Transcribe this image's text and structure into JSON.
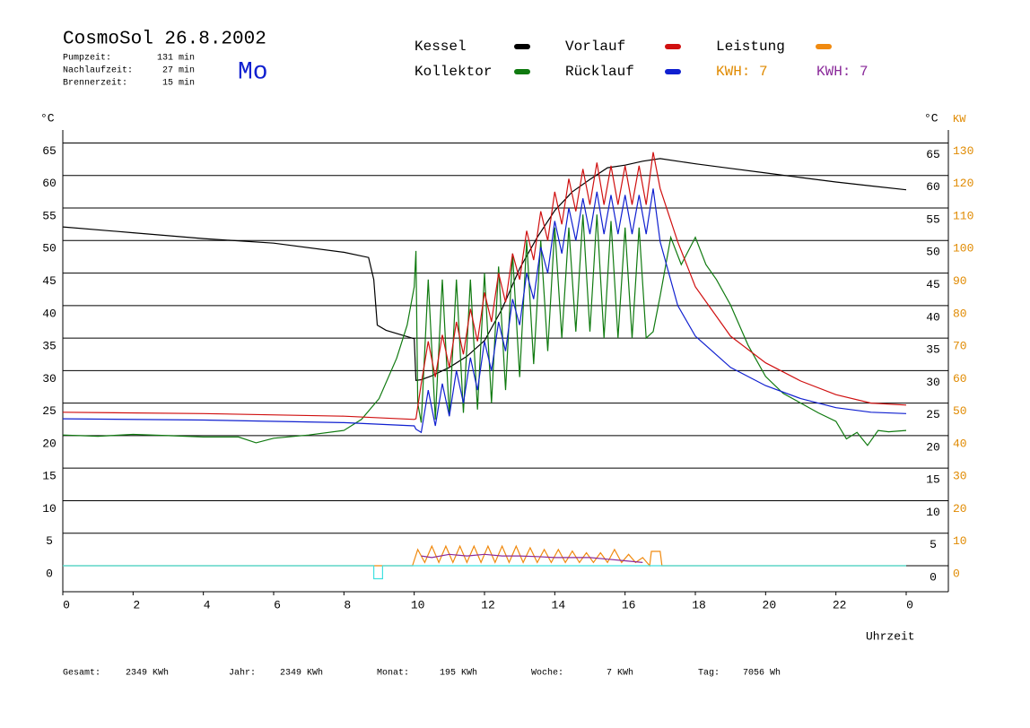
{
  "chart_data": {
    "type": "line",
    "title": "CosmoSol 26.8.2002",
    "weekday": "Mo",
    "stats": [
      {
        "label": "Pumpzeit:",
        "value": "131 min"
      },
      {
        "label": "Nachlaufzeit:",
        "value": "27 min"
      },
      {
        "label": "Brennerzeit:",
        "value": "15 min"
      }
    ],
    "kwh_labels": [
      {
        "text": "KWH: 7",
        "color": "#e08a00"
      },
      {
        "text": "KWH: 7",
        "color": "#8a2a9a"
      }
    ],
    "ylabel": "°C",
    "y2label": "KW",
    "xlabel": "Uhrzeit",
    "xlim": [
      0,
      25.2
    ],
    "xticks": [
      0,
      2,
      4,
      6,
      8,
      10,
      12,
      14,
      16,
      18,
      20,
      22,
      {
        "value": 24,
        "label": "0"
      }
    ],
    "ylim": [
      -4,
      67
    ],
    "yticks": [
      0,
      5,
      10,
      15,
      20,
      25,
      30,
      35,
      40,
      45,
      50,
      55,
      60,
      65
    ],
    "y2lim": [
      -8,
      134
    ],
    "y2ticks": [
      0,
      10,
      20,
      30,
      40,
      50,
      60,
      70,
      80,
      90,
      100,
      110,
      120,
      130
    ],
    "grid": true,
    "series": [
      {
        "name": "Kessel",
        "color": "#000000",
        "x": [
          0,
          2,
          4,
          6,
          8,
          8.7,
          8.85,
          8.95,
          9.2,
          10,
          10.05,
          10.2,
          10.5,
          11,
          11.5,
          12,
          12.5,
          13,
          13.5,
          14,
          14.5,
          15,
          15.5,
          16,
          16.5,
          17,
          18,
          19,
          20,
          21,
          22,
          23,
          24
        ],
        "values": [
          52.1,
          51.2,
          50.3,
          49.6,
          48.2,
          47.4,
          44,
          37,
          36.2,
          34.9,
          28.5,
          28.6,
          29.2,
          30.5,
          32.2,
          34.6,
          39.5,
          45.7,
          50.5,
          54.6,
          57.5,
          59.4,
          61.2,
          61.6,
          62.2,
          62.6,
          61.8,
          61.1,
          60.4,
          59.7,
          59.0,
          58.4,
          57.8
        ]
      },
      {
        "name": "Kollektor",
        "color": "#107a10",
        "x": [
          0,
          1,
          2,
          3,
          4,
          5,
          5.5,
          6,
          7,
          8,
          8.5,
          9,
          9.5,
          9.8,
          10,
          10.05,
          10.1,
          10.2,
          10.4,
          10.6,
          10.8,
          11.0,
          11.2,
          11.4,
          11.6,
          11.8,
          12.0,
          12.2,
          12.4,
          12.6,
          12.8,
          13.0,
          13.2,
          13.4,
          13.6,
          13.8,
          14.0,
          14.2,
          14.4,
          14.6,
          14.8,
          15.0,
          15.2,
          15.4,
          15.6,
          15.8,
          16.0,
          16.2,
          16.4,
          16.6,
          16.8,
          17,
          17.3,
          17.6,
          18,
          18.3,
          18.6,
          19,
          19.5,
          20,
          20.5,
          21,
          21.5,
          22,
          22.3,
          22.6,
          22.9,
          23.2,
          23.5,
          24
        ],
        "values": [
          20.1,
          19.9,
          20.2,
          20.0,
          19.8,
          19.8,
          18.9,
          19.6,
          20.1,
          20.8,
          22.5,
          25.7,
          31.9,
          37,
          42.9,
          48.4,
          25,
          22,
          44,
          22.5,
          44,
          23,
          44,
          23.5,
          44,
          24,
          45,
          25,
          46,
          27,
          48,
          29,
          50,
          31,
          50,
          33,
          52,
          35,
          52,
          36,
          54,
          36,
          54,
          35,
          53,
          35,
          52,
          35,
          52,
          35,
          36,
          41.5,
          50.5,
          46.3,
          50.5,
          46.3,
          44,
          40.1,
          33.9,
          29.1,
          26.5,
          25,
          23.5,
          22.2,
          19.5,
          20.5,
          18.5,
          20.8,
          20.6,
          20.8
        ]
      },
      {
        "name": "Vorlauf",
        "color": "#d01010",
        "x": [
          0,
          4,
          8,
          10,
          10.05,
          10.2,
          10.4,
          10.6,
          10.8,
          11.0,
          11.2,
          11.4,
          11.6,
          11.8,
          12.0,
          12.2,
          12.4,
          12.6,
          12.8,
          13.0,
          13.2,
          13.4,
          13.6,
          13.8,
          14.0,
          14.2,
          14.4,
          14.6,
          14.8,
          15.0,
          15.2,
          15.4,
          15.6,
          15.8,
          16.0,
          16.2,
          16.4,
          16.6,
          16.8,
          17,
          17.5,
          18,
          19,
          20,
          21,
          22,
          23,
          24
        ],
        "values": [
          23.6,
          23.4,
          23.0,
          22.5,
          22.6,
          28,
          34.5,
          29,
          35.5,
          30.5,
          37.5,
          32.5,
          39.5,
          34.5,
          42,
          37.5,
          45,
          40.5,
          48,
          44,
          51.5,
          47,
          54.5,
          50,
          57.5,
          52.5,
          59.5,
          54.5,
          61,
          55.5,
          62,
          55.5,
          61.5,
          55.5,
          61.5,
          55.5,
          61.5,
          55.5,
          63.6,
          58,
          49.8,
          42.9,
          35.3,
          31.2,
          28.4,
          26.3,
          25,
          24.7
        ]
      },
      {
        "name": "Rücklauf",
        "color": "#1020d0",
        "x": [
          0,
          4,
          8,
          10,
          10.05,
          10.2,
          10.4,
          10.6,
          10.8,
          11.0,
          11.2,
          11.4,
          11.6,
          11.8,
          12.0,
          12.2,
          12.4,
          12.6,
          12.8,
          13.0,
          13.2,
          13.4,
          13.6,
          13.8,
          14.0,
          14.2,
          14.4,
          14.6,
          14.8,
          15.0,
          15.2,
          15.4,
          15.6,
          15.8,
          16.0,
          16.2,
          16.4,
          16.6,
          16.8,
          17,
          17.5,
          18,
          19,
          20,
          21,
          22,
          23,
          24
        ],
        "values": [
          22.6,
          22.4,
          22.0,
          21.5,
          21.0,
          20.5,
          27,
          21.5,
          28,
          23,
          30,
          25,
          32,
          27,
          34.5,
          30,
          37.5,
          33,
          41,
          37,
          45,
          41,
          49,
          45,
          53,
          48,
          55,
          50,
          56.5,
          51,
          57.5,
          51,
          57,
          51,
          57,
          51,
          57,
          51,
          58,
          49.8,
          40,
          35.3,
          30.5,
          27.7,
          25.7,
          24.3,
          23.6,
          23.4
        ]
      },
      {
        "name": "Leistung",
        "color": "#f08a10",
        "axis": "y2",
        "x": [
          0,
          9.95,
          10.1,
          10.3,
          10.5,
          10.7,
          10.9,
          11.1,
          11.3,
          11.5,
          11.7,
          11.9,
          12.1,
          12.3,
          12.5,
          12.7,
          12.9,
          13.1,
          13.3,
          13.5,
          13.7,
          13.9,
          14.1,
          14.3,
          14.5,
          14.7,
          14.9,
          15.1,
          15.3,
          15.5,
          15.7,
          15.9,
          16.1,
          16.3,
          16.5,
          16.7,
          16.75,
          17.0,
          17.05,
          24
        ],
        "values": [
          0,
          0,
          5,
          1,
          6,
          1,
          6,
          1,
          6,
          1,
          6,
          1,
          6,
          1,
          6,
          1,
          6,
          1,
          5.5,
          1,
          5,
          1,
          5,
          1,
          4.5,
          1,
          4,
          1,
          4,
          1,
          5,
          1,
          3.5,
          1,
          2.5,
          0,
          4.4,
          4.4,
          0,
          0
        ]
      },
      {
        "color": "#8a2a9a",
        "axis": "y2",
        "x": [
          10.2,
          10.5,
          11,
          11.5,
          12,
          12.5,
          13,
          13.5,
          14,
          14.5,
          15,
          15.5,
          16,
          16.5
        ],
        "values": [
          3,
          2.5,
          3.5,
          3,
          3.5,
          3,
          3,
          2.8,
          2.5,
          2.5,
          2.5,
          2,
          1.5,
          1
        ]
      },
      {
        "color": "#40e0e0",
        "x": [
          0,
          8.85,
          8.85,
          9.1,
          9.1,
          24
        ],
        "values": [
          0,
          0,
          -2,
          -2,
          0,
          0
        ]
      }
    ],
    "footer": [
      {
        "label": "Gesamt:",
        "value": "2349 KWh"
      },
      {
        "label": "Jahr:",
        "value": "2349 KWh"
      },
      {
        "label": "Monat:",
        "value": "195 KWh"
      },
      {
        "label": "Woche:",
        "value": "7 KWh"
      },
      {
        "label": "Tag:",
        "value": "7056 Wh"
      }
    ]
  }
}
